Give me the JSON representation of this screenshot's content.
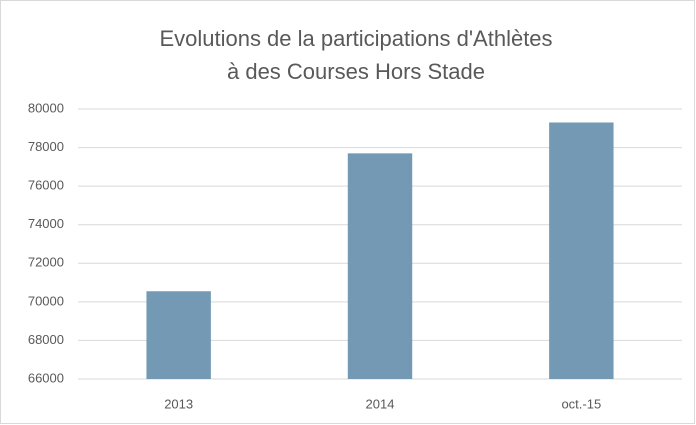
{
  "chart_data": {
    "type": "bar",
    "title": [
      "Evolutions de la participations d'Athlètes",
      "à des Courses Hors Stade"
    ],
    "categories": [
      "2013",
      "2014",
      "oct.-15"
    ],
    "values": [
      70550,
      77700,
      79300
    ],
    "color": "#7399b4",
    "ylim": [
      66000,
      80000
    ],
    "yticks": [
      66000,
      68000,
      70000,
      72000,
      74000,
      76000,
      78000,
      80000
    ],
    "grid": true
  }
}
